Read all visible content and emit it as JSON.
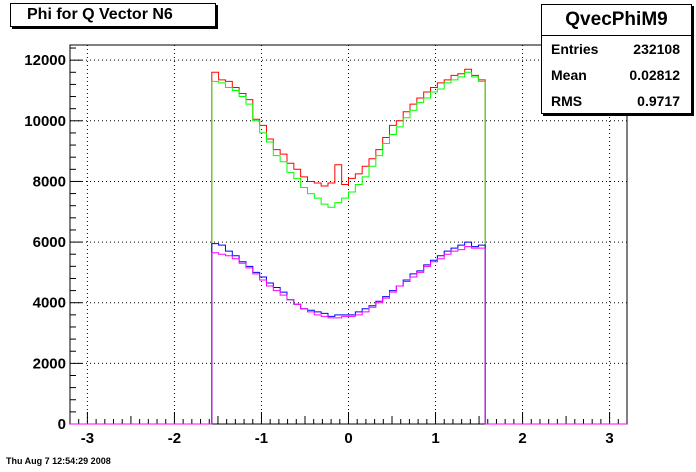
{
  "title": "Phi for Q Vector N6",
  "stats": {
    "name": "QvecPhiM9",
    "rows": [
      {
        "key": "Entries",
        "value": "232108"
      },
      {
        "key": "Mean",
        "value": "0.02812"
      },
      {
        "key": "RMS",
        "value": "0.9717"
      }
    ]
  },
  "footer": "Thu Aug  7 12:54:29 2008",
  "chart_data": {
    "type": "line",
    "title": "Phi for Q Vector N6",
    "xlabel": "",
    "ylabel": "",
    "xlim": [
      -3.2,
      3.2
    ],
    "ylim": [
      0,
      12500
    ],
    "xticks": [
      -3,
      -2,
      -1,
      0,
      1,
      2,
      3
    ],
    "yticks": [
      0,
      2000,
      4000,
      6000,
      8000,
      10000,
      12000
    ],
    "grid": true,
    "x_range": [
      -1.5708,
      1.5708
    ],
    "bin_count": 40,
    "series": [
      {
        "color": "#ff0000",
        "values": [
          11600,
          11350,
          11300,
          11100,
          10900,
          10700,
          10050,
          9850,
          9400,
          9050,
          8900,
          8600,
          8400,
          8150,
          8000,
          7950,
          7850,
          7950,
          8550,
          7900,
          8100,
          8250,
          8500,
          8750,
          9050,
          9450,
          9850,
          10000,
          10300,
          10550,
          10750,
          10950,
          11100,
          11250,
          11350,
          11500,
          11550,
          11700,
          11500,
          11350
        ]
      },
      {
        "color": "#00ff00",
        "values": [
          11300,
          11250,
          11100,
          11000,
          10800,
          10550,
          10000,
          9600,
          9300,
          8850,
          8650,
          8300,
          8100,
          7800,
          7600,
          7450,
          7250,
          7150,
          7300,
          7450,
          7650,
          7900,
          8150,
          8500,
          8850,
          9250,
          9550,
          9800,
          10100,
          10350,
          10600,
          10750,
          10950,
          11050,
          11250,
          11350,
          11450,
          11600,
          11450,
          11300
        ]
      },
      {
        "color": "#0000ff",
        "values": [
          5950,
          5900,
          5700,
          5550,
          5350,
          5200,
          5000,
          4850,
          4650,
          4500,
          4350,
          4100,
          3950,
          3800,
          3750,
          3700,
          3650,
          3550,
          3600,
          3600,
          3600,
          3700,
          3800,
          3900,
          4050,
          4200,
          4400,
          4550,
          4750,
          4950,
          5050,
          5250,
          5400,
          5550,
          5700,
          5800,
          5900,
          6000,
          5850,
          5900
        ]
      },
      {
        "color": "#ff00ff",
        "values": [
          5650,
          5600,
          5550,
          5450,
          5300,
          5150,
          4950,
          4750,
          4550,
          4400,
          4250,
          4100,
          3950,
          3800,
          3700,
          3600,
          3550,
          3500,
          3500,
          3550,
          3550,
          3600,
          3700,
          3850,
          4000,
          4150,
          4350,
          4550,
          4700,
          4850,
          5000,
          5200,
          5350,
          5450,
          5600,
          5700,
          5750,
          5850,
          5800,
          5800
        ]
      }
    ]
  }
}
